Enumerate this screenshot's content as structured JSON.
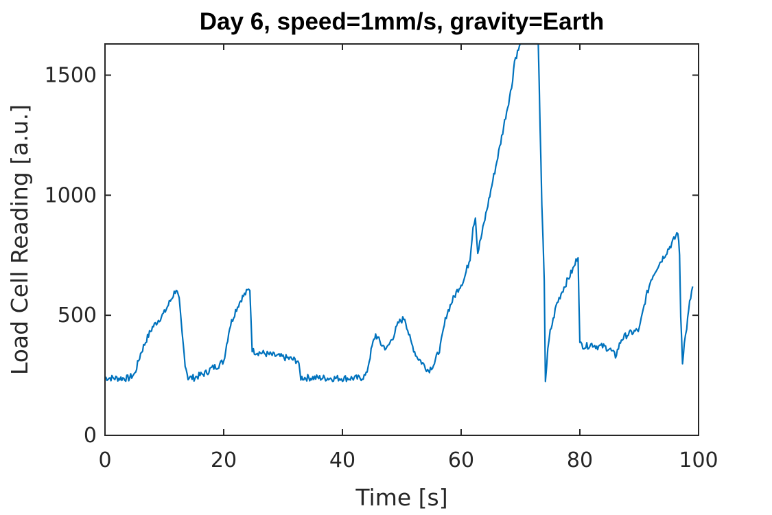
{
  "chart_data": {
    "type": "line",
    "title": "Day 6, speed=1mm/s, gravity=Earth",
    "xlabel": "Time [s]",
    "ylabel": "Load Cell Reading [a.u.]",
    "xlim": [
      0,
      100
    ],
    "ylim": [
      0,
      1630
    ],
    "xticks": [
      0,
      20,
      40,
      60,
      80,
      100
    ],
    "yticks": [
      0,
      500,
      1000,
      1500
    ],
    "grid": false,
    "line_color": "#0072BD",
    "series": [
      {
        "x": [
          0,
          2,
          4,
          5,
          6,
          7,
          8,
          9,
          10,
          11,
          12,
          12.5,
          13,
          13.5,
          14,
          15,
          16,
          17,
          18,
          19,
          20,
          21,
          22,
          23,
          24,
          24.4,
          24.8,
          25,
          27,
          29,
          31,
          32.5,
          33,
          35,
          38,
          41,
          43,
          44,
          45,
          45.6,
          46.5,
          47.5,
          48.5,
          49.5,
          50.5,
          51.5,
          52.5,
          53.5,
          54.5,
          55.5,
          56.5,
          57.5,
          58.5,
          59.5,
          60.5,
          61.5,
          62,
          62.4,
          62.8,
          63.5,
          64.5,
          65.5,
          66.5,
          67.5,
          68.5,
          69,
          70,
          71,
          72,
          73,
          73.3,
          73.6,
          74,
          74.2,
          74.6,
          75,
          75.5,
          76,
          77,
          78,
          79,
          79.7,
          80,
          81,
          82,
          83,
          84,
          85,
          86,
          87,
          88,
          89,
          90,
          91,
          92,
          93,
          94,
          95,
          96,
          96.5,
          96.8,
          97,
          97.3,
          97.6,
          98,
          98.5,
          99
        ],
        "y": [
          240,
          238,
          238,
          255,
          340,
          400,
          450,
          480,
          510,
          560,
          610,
          560,
          420,
          300,
          240,
          240,
          250,
          260,
          280,
          290,
          310,
          450,
          520,
          570,
          600,
          610,
          360,
          350,
          340,
          330,
          320,
          310,
          240,
          240,
          238,
          238,
          238,
          250,
          370,
          420,
          380,
          360,
          410,
          470,
          490,
          390,
          330,
          300,
          270,
          300,
          370,
          500,
          560,
          610,
          650,
          740,
          870,
          910,
          760,
          840,
          960,
          1080,
          1200,
          1330,
          1450,
          1560,
          1630,
          1630,
          1630,
          1630,
          1300,
          950,
          650,
          230,
          350,
          430,
          480,
          540,
          600,
          650,
          700,
          750,
          380,
          370,
          380,
          370,
          370,
          360,
          330,
          400,
          420,
          430,
          440,
          560,
          650,
          700,
          740,
          780,
          820,
          850,
          750,
          500,
          310,
          380,
          450,
          550,
          620
        ]
      }
    ]
  }
}
